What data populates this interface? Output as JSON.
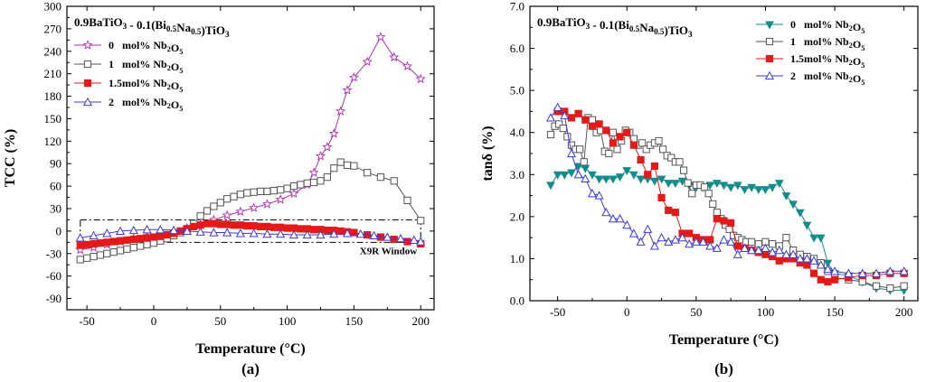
{
  "chart_data": [
    {
      "type": "line",
      "panel_label": "(a)",
      "title": "0.9BaTiO3 - 0.1(Bi0.5Na0.5)TiO3",
      "xlabel": "Temperature (°C)",
      "ylabel": "TCC (%)",
      "xlim": [
        -65,
        210
      ],
      "ylim": [
        -105,
        300
      ],
      "xticks": [
        -50,
        0,
        50,
        100,
        150,
        200
      ],
      "xtick_labels": [
        "-50",
        "0",
        "50",
        "100",
        "150",
        "200"
      ],
      "yticks": [
        -90,
        -60,
        -30,
        0,
        30,
        60,
        90,
        120,
        150,
        180,
        210,
        240,
        270,
        300
      ],
      "ytick_labels": [
        "-90",
        "-60",
        "-30",
        "0",
        "30",
        "60",
        "90",
        "120",
        "150",
        "180",
        "210",
        "240",
        "270",
        "300"
      ],
      "legend_position": "top-left",
      "annotation": {
        "label": "X9R Window",
        "x_range": [
          -55,
          200
        ],
        "y_range": [
          -15,
          15
        ]
      },
      "series": [
        {
          "name": "0   mol% Nb2O5",
          "color": "#b02fb0",
          "marker": "star-open",
          "x": [
            -55,
            -45,
            -35,
            -25,
            -15,
            -5,
            5,
            15,
            25,
            35,
            45,
            55,
            65,
            75,
            85,
            95,
            105,
            115,
            120,
            125,
            130,
            135,
            140,
            145,
            150,
            160,
            170,
            180,
            190,
            200
          ],
          "y": [
            -25,
            -22,
            -18,
            -14,
            -10,
            -7,
            -4,
            0,
            4,
            9,
            15,
            21,
            26,
            31,
            36,
            42,
            50,
            62,
            78,
            100,
            112,
            130,
            160,
            188,
            205,
            226,
            259,
            232,
            220,
            203
          ]
        },
        {
          "name": "1   mol% Nb2O5",
          "color": "#555555",
          "marker": "square-open",
          "x": [
            -55,
            -50,
            -45,
            -40,
            -35,
            -30,
            -25,
            -20,
            -15,
            -10,
            -5,
            0,
            5,
            10,
            15,
            20,
            25,
            30,
            35,
            40,
            45,
            50,
            55,
            60,
            65,
            70,
            75,
            80,
            85,
            90,
            95,
            100,
            105,
            110,
            115,
            120,
            125,
            130,
            135,
            140,
            145,
            150,
            160,
            170,
            180,
            190,
            200
          ],
          "y": [
            -38,
            -36,
            -34,
            -32,
            -30,
            -28,
            -26,
            -24,
            -22,
            -20,
            -18,
            -16,
            -13,
            -10,
            -6,
            -2,
            3,
            10,
            20,
            27,
            33,
            38,
            43,
            46,
            49,
            51,
            52,
            53,
            53,
            54,
            55,
            57,
            60,
            62,
            64,
            65,
            67,
            72,
            84,
            92,
            88,
            87,
            78,
            72,
            67,
            41,
            14
          ]
        },
        {
          "name": "1.5mol% Nb2O5",
          "color": "#e41a1a",
          "marker": "square-filled",
          "x": [
            -55,
            -50,
            -45,
            -40,
            -35,
            -30,
            -25,
            -20,
            -15,
            -10,
            -5,
            0,
            5,
            10,
            15,
            20,
            25,
            30,
            35,
            40,
            45,
            50,
            55,
            60,
            65,
            70,
            75,
            80,
            85,
            90,
            95,
            100,
            105,
            110,
            115,
            120,
            125,
            130,
            135,
            140,
            145,
            150,
            160,
            170,
            180,
            190,
            200
          ],
          "y": [
            -19,
            -18,
            -17,
            -16,
            -15,
            -14,
            -13,
            -12,
            -11,
            -10,
            -9,
            -8,
            -7,
            -5,
            -3,
            0,
            3,
            6,
            8,
            10,
            10,
            9,
            9,
            8,
            8,
            7,
            7,
            6,
            6,
            5,
            5,
            4,
            4,
            3,
            3,
            2,
            2,
            1,
            1,
            0,
            -1,
            -2,
            -5,
            -8,
            -11,
            -14,
            -17
          ]
        },
        {
          "name": "2   mol% Nb2O5",
          "color": "#3b3bd1",
          "marker": "triangle-open",
          "x": [
            -55,
            -45,
            -35,
            -25,
            -15,
            -5,
            5,
            15,
            25,
            35,
            45,
            55,
            65,
            75,
            85,
            95,
            105,
            115,
            125,
            135,
            145,
            155,
            165,
            175,
            185,
            195,
            200
          ],
          "y": [
            -9,
            -6,
            -3,
            0,
            1,
            2,
            2,
            1,
            0,
            -1,
            -2,
            -2,
            -3,
            -3,
            -4,
            -4,
            -5,
            -5,
            -5,
            -4,
            -3,
            -4,
            -6,
            -8,
            -10,
            -12,
            -14
          ]
        }
      ]
    },
    {
      "type": "line",
      "panel_label": "(b)",
      "title": "0.9BaTiO3 - 0.1(Bi0.5Na0.5)TiO3",
      "xlabel": "Temperature (°C)",
      "ylabel": "tanδ (%)",
      "xlim": [
        -70,
        210
      ],
      "ylim": [
        0,
        7
      ],
      "xticks": [
        -50,
        0,
        50,
        100,
        150,
        200
      ],
      "xtick_labels": [
        "-50",
        "0",
        "50",
        "100",
        "150",
        "200"
      ],
      "yticks": [
        0,
        1,
        2,
        3,
        4,
        5,
        6,
        7
      ],
      "ytick_labels": [
        "0.0",
        "1.0",
        "2.0",
        "3.0",
        "4.0",
        "5.0",
        "6.0",
        "7.0"
      ],
      "legend_position": "top-right",
      "series": [
        {
          "name": "0   mol% Nb2O5",
          "color": "#138c8c",
          "marker": "triangle-down-filled",
          "x": [
            -55,
            -50,
            -45,
            -40,
            -35,
            -30,
            -25,
            -20,
            -15,
            -10,
            -5,
            0,
            5,
            10,
            15,
            20,
            25,
            30,
            35,
            40,
            45,
            50,
            55,
            60,
            65,
            70,
            75,
            80,
            85,
            90,
            95,
            100,
            105,
            110,
            115,
            120,
            125,
            130,
            135,
            140,
            145,
            150,
            160,
            170,
            180,
            190,
            200
          ],
          "y": [
            2.75,
            3.0,
            3.0,
            3.05,
            3.2,
            3.15,
            3.0,
            2.9,
            2.9,
            2.9,
            2.95,
            3.1,
            3.0,
            2.9,
            2.9,
            2.85,
            2.9,
            2.8,
            2.8,
            2.85,
            2.75,
            2.7,
            2.7,
            2.75,
            2.8,
            2.75,
            2.7,
            2.75,
            2.65,
            2.7,
            2.65,
            2.65,
            2.7,
            2.8,
            2.5,
            2.3,
            2.1,
            1.8,
            1.5,
            1.5,
            0.9,
            0.65,
            0.6,
            0.45,
            0.3,
            0.25,
            0.25
          ]
        },
        {
          "name": "1   mol% Nb2O5",
          "color": "#555555",
          "marker": "square-open",
          "x": [
            -55,
            -52,
            -49,
            -46,
            -43,
            -40,
            -37,
            -34,
            -31,
            -28,
            -25,
            -22,
            -19,
            -16,
            -13,
            -10,
            -7,
            -4,
            -1,
            2,
            5,
            8,
            11,
            14,
            17,
            20,
            23,
            26,
            29,
            32,
            35,
            38,
            41,
            44,
            47,
            50,
            53,
            56,
            59,
            62,
            65,
            68,
            71,
            74,
            77,
            80,
            83,
            86,
            90,
            95,
            100,
            105,
            110,
            115,
            120,
            125,
            130,
            135,
            140,
            145,
            150,
            160,
            170,
            180,
            190,
            200
          ],
          "y": [
            3.95,
            4.15,
            4.2,
            4.1,
            3.9,
            3.7,
            3.6,
            3.6,
            3.3,
            4.35,
            4.3,
            4.0,
            4.05,
            3.55,
            3.5,
            4.0,
            3.6,
            3.8,
            4.05,
            4.0,
            3.85,
            3.7,
            3.75,
            3.6,
            3.7,
            3.75,
            3.8,
            3.6,
            3.45,
            3.4,
            3.3,
            3.3,
            3.1,
            2.8,
            2.55,
            2.75,
            2.75,
            2.7,
            2.55,
            2.3,
            2.1,
            1.95,
            1.8,
            1.7,
            1.55,
            1.5,
            1.45,
            1.4,
            1.4,
            1.35,
            1.4,
            1.35,
            1.3,
            1.5,
            1.2,
            1.1,
            1.05,
            1.0,
            0.9,
            0.7,
            0.55,
            0.5,
            0.45,
            0.35,
            0.3,
            0.35
          ]
        },
        {
          "name": "1.5mol% Nb2O5",
          "color": "#e41a1a",
          "marker": "square-filled",
          "x": [
            -50,
            -45,
            -40,
            -35,
            -30,
            -25,
            -20,
            -15,
            -10,
            -5,
            0,
            5,
            10,
            15,
            20,
            25,
            30,
            35,
            40,
            45,
            50,
            55,
            60,
            65,
            70,
            75,
            80,
            85,
            90,
            95,
            100,
            105,
            110,
            115,
            120,
            125,
            130,
            135,
            140,
            145,
            150,
            160,
            170,
            180,
            190,
            200
          ],
          "y": [
            4.5,
            4.5,
            4.35,
            4.45,
            4.3,
            4.15,
            4.2,
            4.05,
            3.75,
            3.9,
            4.0,
            3.7,
            3.35,
            3.0,
            3.2,
            2.45,
            2.15,
            2.1,
            1.6,
            1.6,
            1.5,
            1.45,
            1.45,
            1.95,
            1.9,
            1.85,
            1.3,
            1.25,
            1.2,
            1.15,
            1.1,
            1.05,
            0.95,
            1.0,
            1.0,
            0.9,
            0.85,
            0.65,
            0.5,
            0.45,
            0.5,
            0.55,
            0.6,
            0.6,
            0.65,
            0.65
          ]
        },
        {
          "name": "2   mol% Nb2O5",
          "color": "#3b3bd1",
          "marker": "triangle-open",
          "x": [
            -55,
            -50,
            -45,
            -40,
            -35,
            -30,
            -25,
            -20,
            -15,
            -10,
            -5,
            0,
            5,
            10,
            15,
            20,
            25,
            30,
            35,
            40,
            45,
            50,
            55,
            60,
            65,
            70,
            75,
            80,
            85,
            90,
            95,
            100,
            105,
            110,
            115,
            120,
            125,
            130,
            135,
            140,
            145,
            150,
            160,
            170,
            180,
            190,
            200
          ],
          "y": [
            4.35,
            4.6,
            4.4,
            3.5,
            3.0,
            2.9,
            2.55,
            2.5,
            2.1,
            1.95,
            1.95,
            1.8,
            1.6,
            1.4,
            1.7,
            1.3,
            1.5,
            1.4,
            1.45,
            1.5,
            1.35,
            1.4,
            1.4,
            1.3,
            1.25,
            1.45,
            1.4,
            1.1,
            1.25,
            1.2,
            1.2,
            1.25,
            1.15,
            1.2,
            1.1,
            1.1,
            1.0,
            1.0,
            0.95,
            0.85,
            0.75,
            0.7,
            0.65,
            0.65,
            0.65,
            0.7,
            0.7
          ]
        }
      ]
    }
  ]
}
